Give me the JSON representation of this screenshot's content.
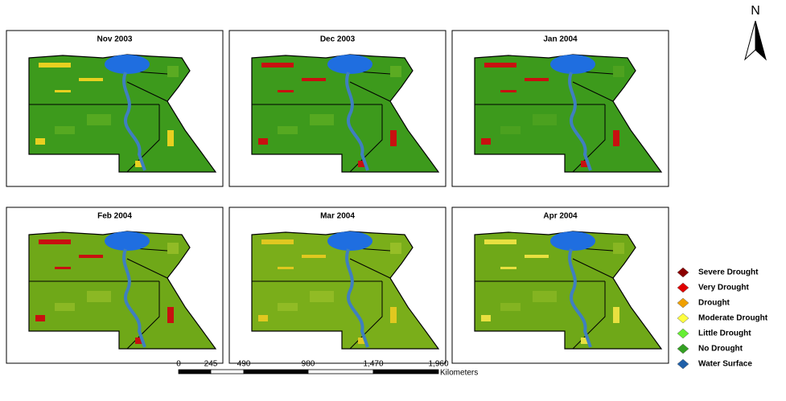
{
  "panels": [
    {
      "title": "Nov 2003"
    },
    {
      "title": "Dec 2003"
    },
    {
      "title": "Jan 2004"
    },
    {
      "title": "Feb 2004"
    },
    {
      "title": "Mar 2004"
    },
    {
      "title": "Apr 2004"
    }
  ],
  "north": "N",
  "legend": [
    {
      "label": "Severe Drought",
      "color": "#8b0000"
    },
    {
      "label": "Very Drought",
      "color": "#e00000"
    },
    {
      "label": "Drought",
      "color": "#f0a000"
    },
    {
      "label": "Moderate Drought",
      "color": "#ffff40"
    },
    {
      "label": "Little Drought",
      "color": "#66ee33"
    },
    {
      "label": "No Drought",
      "color": "#33a022"
    },
    {
      "label": "Water Surface",
      "color": "#1f5fa8"
    }
  ],
  "scale_bar": {
    "ticks": [
      "0",
      "245",
      "490",
      "980",
      "1,470",
      "1,960"
    ],
    "unit": "Kilometers"
  }
}
